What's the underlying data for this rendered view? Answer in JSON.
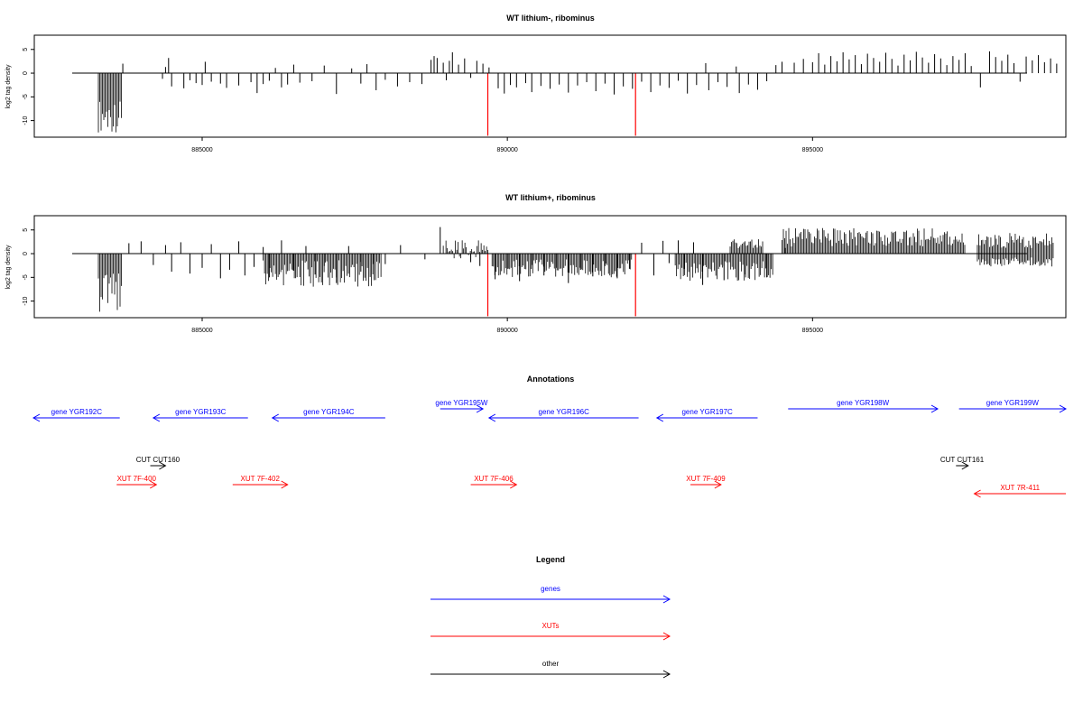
{
  "chart_data": [
    {
      "type": "bar",
      "title": "WT lithium-, ribominus",
      "ylabel": "log2 tag density",
      "xlim": [
        882250,
        899150
      ],
      "ylim": [
        -13.5,
        8
      ],
      "yticks": [
        5,
        0,
        -5,
        -10
      ],
      "yticklabels": [
        "5",
        "0",
        "-5",
        "-10"
      ],
      "xticks": [
        885000,
        890000,
        895000
      ],
      "xticklabels": [
        "885000",
        "890000",
        "895000"
      ],
      "grid": false,
      "series": [
        {
          "bars": [
            [
              883700,
              2
            ],
            [
              884350,
              -1.2
            ],
            [
              884400,
              1.3
            ],
            [
              884450,
              3.2
            ],
            [
              884500,
              -2.8
            ],
            [
              884700,
              -3.2
            ],
            [
              884800,
              -1.5
            ],
            [
              884900,
              -2.1
            ],
            [
              885000,
              -2.5
            ],
            [
              885050,
              2.4
            ],
            [
              885150,
              -1.8
            ],
            [
              885300,
              -2.2
            ],
            [
              885400,
              -3.1
            ],
            [
              885600,
              -2.6
            ],
            [
              885800,
              -1.9
            ],
            [
              885900,
              -4.2
            ],
            [
              886000,
              -2.3
            ],
            [
              886100,
              -1.6
            ],
            [
              886200,
              1.1
            ],
            [
              886300,
              -3
            ],
            [
              886400,
              -2.4
            ],
            [
              886500,
              1.8
            ],
            [
              886600,
              -2
            ],
            [
              886800,
              -1.7
            ],
            [
              887000,
              1.6
            ],
            [
              887200,
              -4.4
            ],
            [
              887450,
              1
            ],
            [
              887600,
              -2.2
            ],
            [
              887700,
              1.9
            ],
            [
              887850,
              -3.6
            ],
            [
              888000,
              -1.4
            ],
            [
              888200,
              -2.8
            ],
            [
              888400,
              -1.9
            ],
            [
              888600,
              -2.3
            ],
            [
              888750,
              2.8
            ],
            [
              888800,
              3.6
            ],
            [
              888850,
              3.2
            ],
            [
              888950,
              2.2
            ],
            [
              889000,
              -1.5
            ],
            [
              889050,
              2.6
            ],
            [
              889100,
              4.4
            ],
            [
              889200,
              1.8
            ],
            [
              889300,
              3.1
            ],
            [
              889400,
              -1
            ],
            [
              889500,
              2.6
            ],
            [
              889600,
              2
            ],
            [
              889700,
              1.2
            ],
            [
              889850,
              -3.2
            ],
            [
              889950,
              -4.3
            ],
            [
              890050,
              -2.5
            ],
            [
              890150,
              -3
            ],
            [
              890300,
              -2.1
            ],
            [
              890400,
              -4
            ],
            [
              890550,
              -2.7
            ],
            [
              890700,
              -3.3
            ],
            [
              890850,
              -2.4
            ],
            [
              891000,
              -4.1
            ],
            [
              891150,
              -2.6
            ],
            [
              891300,
              -1.9
            ],
            [
              891450,
              -3.8
            ],
            [
              891600,
              -2.2
            ],
            [
              891750,
              -4.5
            ],
            [
              891900,
              -2.8
            ],
            [
              892050,
              -3.3
            ],
            [
              892200,
              -1.8
            ],
            [
              892350,
              -4
            ],
            [
              892500,
              -2.6
            ],
            [
              892650,
              -3.1
            ],
            [
              892800,
              -1.6
            ],
            [
              892950,
              -4.3
            ],
            [
              893100,
              -2.5
            ],
            [
              893250,
              2.1
            ],
            [
              893300,
              -3.6
            ],
            [
              893450,
              -1.9
            ],
            [
              893600,
              -2.9
            ],
            [
              893750,
              1.4
            ],
            [
              893800,
              -4.2
            ],
            [
              893950,
              -2.4
            ],
            [
              894100,
              -3.5
            ],
            [
              894250,
              -1.7
            ],
            [
              894400,
              1.7
            ],
            [
              894500,
              2.4
            ],
            [
              894700,
              2.2
            ],
            [
              894850,
              3
            ],
            [
              895000,
              2.3
            ],
            [
              895100,
              4.2
            ],
            [
              895200,
              1.8
            ],
            [
              895300,
              3.6
            ],
            [
              895400,
              2.5
            ],
            [
              895500,
              4.4
            ],
            [
              895600,
              2.9
            ],
            [
              895700,
              3.8
            ],
            [
              895800,
              1.9
            ],
            [
              895900,
              4.1
            ],
            [
              896000,
              3.2
            ],
            [
              896100,
              2.4
            ],
            [
              896200,
              4.3
            ],
            [
              896300,
              3
            ],
            [
              896400,
              1.6
            ],
            [
              896500,
              3.9
            ],
            [
              896600,
              2.7
            ],
            [
              896700,
              4.5
            ],
            [
              896800,
              3.3
            ],
            [
              896900,
              2.2
            ],
            [
              897000,
              4
            ],
            [
              897100,
              3.1
            ],
            [
              897200,
              1.7
            ],
            [
              897300,
              3.6
            ],
            [
              897400,
              2.8
            ],
            [
              897500,
              4.2
            ],
            [
              897600,
              1.5
            ],
            [
              897750,
              -3
            ],
            [
              897900,
              4.6
            ],
            [
              898000,
              3.4
            ],
            [
              898100,
              2.6
            ],
            [
              898200,
              3.9
            ],
            [
              898300,
              2.1
            ],
            [
              898400,
              -1.8
            ],
            [
              898500,
              3.5
            ],
            [
              898600,
              2.7
            ],
            [
              898700,
              3.8
            ],
            [
              898800,
              2.3
            ],
            [
              898900,
              3.1
            ],
            [
              899000,
              2
            ]
          ],
          "dense_segments": [
            {
              "x0": 883300,
              "x1": 883680,
              "ymin": -12.5,
              "ymax": -5.5
            }
          ]
        },
        {
          "name": "red",
          "color": "#ff0000",
          "bars": [
            [
              889680,
              -13.2
            ],
            [
              892100,
              -13.2
            ]
          ]
        }
      ]
    },
    {
      "type": "bar",
      "title": "WT lithium+, ribominus",
      "ylabel": "log2 tag density",
      "xlim": [
        882250,
        899150
      ],
      "ylim": [
        -13.5,
        8
      ],
      "yticks": [
        5,
        0,
        -5,
        -10
      ],
      "yticklabels": [
        "5",
        "0",
        "-5",
        "-10"
      ],
      "xticks": [
        885000,
        890000,
        895000
      ],
      "xticklabels": [
        "885000",
        "890000",
        "895000"
      ],
      "grid": false,
      "series": [
        {
          "bars": [
            [
              883800,
              2.2
            ],
            [
              884000,
              2.6
            ],
            [
              884200,
              -2.4
            ],
            [
              884400,
              1.8
            ],
            [
              884500,
              -3.8
            ],
            [
              884650,
              2.4
            ],
            [
              884800,
              -4.2
            ],
            [
              885000,
              -3
            ],
            [
              885150,
              2
            ],
            [
              885300,
              -5.2
            ],
            [
              885450,
              -3.4
            ],
            [
              885600,
              2.6
            ],
            [
              885700,
              -4.6
            ],
            [
              885850,
              -2.8
            ],
            [
              886000,
              1.4
            ],
            [
              886100,
              -5
            ],
            [
              886300,
              2.8
            ],
            [
              886500,
              -3.6
            ],
            [
              886700,
              1.6
            ],
            [
              886850,
              -4.4
            ],
            [
              887000,
              -2.6
            ],
            [
              887200,
              -6.2
            ],
            [
              887400,
              1.6
            ],
            [
              887600,
              -3.8
            ],
            [
              887800,
              -2.2
            ],
            [
              888000,
              -2.2
            ],
            [
              888250,
              1.8
            ],
            [
              888650,
              -1.2
            ],
            [
              888900,
              5.6
            ],
            [
              889400,
              -1.8
            ],
            [
              889550,
              -2.6
            ],
            [
              889800,
              -5.4
            ],
            [
              890000,
              -3.2
            ],
            [
              890200,
              -5.8
            ],
            [
              890400,
              -2.4
            ],
            [
              890600,
              -4.6
            ],
            [
              890800,
              -3
            ],
            [
              891000,
              -6.2
            ],
            [
              891200,
              -3.4
            ],
            [
              891400,
              -4.8
            ],
            [
              891600,
              -2.6
            ],
            [
              891800,
              -5.2
            ],
            [
              892000,
              -3.2
            ],
            [
              892200,
              2.3
            ],
            [
              892400,
              -4.6
            ],
            [
              892550,
              2.7
            ],
            [
              892650,
              -2
            ],
            [
              892800,
              2.8
            ],
            [
              892900,
              -3.2
            ],
            [
              893050,
              2.4
            ],
            [
              893200,
              -6.6
            ],
            [
              893550,
              -5.6
            ],
            [
              893900,
              -4.4
            ],
            [
              894250,
              -5
            ],
            [
              894550,
              1.2
            ]
          ],
          "dense_segments": [
            {
              "x0": 883300,
              "x1": 883680,
              "ymin": -12.8,
              "ymax": -4
            },
            {
              "x0": 886000,
              "x1": 887950,
              "ymin": -7,
              "ymax": -1.4
            },
            {
              "x0": 888950,
              "x1": 889700,
              "ymin": -1,
              "ymax": 3.2
            },
            {
              "x0": 889750,
              "x1": 892050,
              "ymin": -5,
              "ymax": -1.2
            },
            {
              "x0": 892750,
              "x1": 894350,
              "ymin": -5.8,
              "ymax": -1.6
            },
            {
              "x0": 893650,
              "x1": 894200,
              "ymin": 1.2,
              "ymax": 3.2
            },
            {
              "x0": 894500,
              "x1": 897500,
              "ymin": 1.5,
              "ymax": 5.4
            },
            {
              "x0": 897700,
              "x1": 898950,
              "ymin": 1.2,
              "ymax": 4.4
            },
            {
              "x0": 897700,
              "x1": 898950,
              "ymin": -2.8,
              "ymax": -0.8
            }
          ]
        },
        {
          "name": "red",
          "color": "#ff0000",
          "bars": [
            [
              889680,
              -13.2
            ],
            [
              892100,
              -13.2
            ]
          ]
        }
      ]
    }
  ],
  "annotations": {
    "title": "Annotations",
    "features": [
      {
        "label": "gene YGR192C",
        "kind": "genes",
        "strand": "-",
        "start": 882200,
        "end": 883650,
        "row": 2
      },
      {
        "label": "gene YGR193C",
        "kind": "genes",
        "strand": "-",
        "start": 884200,
        "end": 885750,
        "row": 2
      },
      {
        "label": "gene YGR194C",
        "kind": "genes",
        "strand": "-",
        "start": 886150,
        "end": 888000,
        "row": 2
      },
      {
        "label": "gene YGR195W",
        "kind": "genes",
        "strand": "+",
        "start": 888900,
        "end": 889600,
        "row": 1
      },
      {
        "label": "gene YGR196C",
        "kind": "genes",
        "strand": "-",
        "start": 889700,
        "end": 892150,
        "row": 2
      },
      {
        "label": "gene YGR197C",
        "kind": "genes",
        "strand": "-",
        "start": 892450,
        "end": 894100,
        "row": 2
      },
      {
        "label": "gene YGR198W",
        "kind": "genes",
        "strand": "+",
        "start": 894600,
        "end": 897050,
        "row": 1
      },
      {
        "label": "gene YGR199W",
        "kind": "genes",
        "strand": "+",
        "start": 897400,
        "end": 899150,
        "row": 1
      },
      {
        "label": "CUT CUT160",
        "kind": "other",
        "strand": "+",
        "start": 884150,
        "end": 884400,
        "row": 3
      },
      {
        "label": "CUT CUT161",
        "kind": "other",
        "strand": "+",
        "start": 897350,
        "end": 897550,
        "row": 3
      },
      {
        "label": "XUT 7F-400",
        "kind": "XUTs",
        "strand": "+",
        "start": 883600,
        "end": 884250,
        "row": 4
      },
      {
        "label": "XUT 7F-402",
        "kind": "XUTs",
        "strand": "+",
        "start": 885500,
        "end": 886400,
        "row": 4
      },
      {
        "label": "XUT 7F-406",
        "kind": "XUTs",
        "strand": "+",
        "start": 889400,
        "end": 890150,
        "row": 4
      },
      {
        "label": "XUT 7F-409",
        "kind": "XUTs",
        "strand": "+",
        "start": 893000,
        "end": 893500,
        "row": 4
      },
      {
        "label": "XUT 7R-411",
        "kind": "XUTs",
        "strand": "-",
        "start": 897650,
        "end": 899150,
        "row": 5
      }
    ]
  },
  "legend": {
    "title": "Legend",
    "entries": [
      {
        "label": "genes",
        "kind": "genes"
      },
      {
        "label": "XUTs",
        "kind": "XUTs"
      },
      {
        "label": "other",
        "kind": "other"
      }
    ]
  },
  "colors": {
    "genes": "#0000ff",
    "XUTs": "#ff0000",
    "other": "#000000",
    "data": "#000000"
  }
}
